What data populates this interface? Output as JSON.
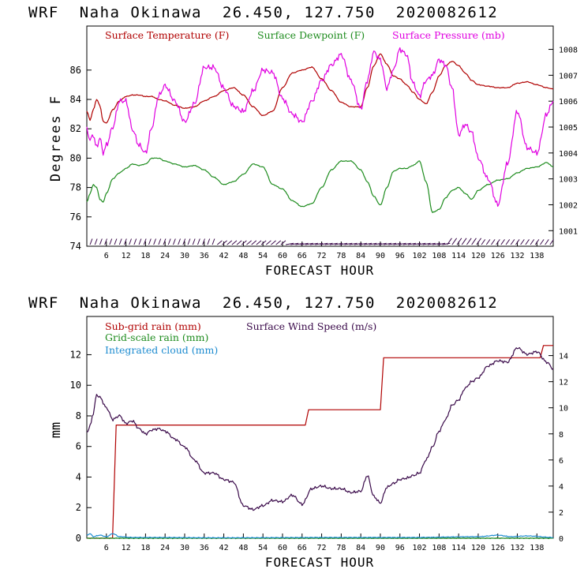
{
  "colors": {
    "temp": "#b00000",
    "dew": "#1e8c1e",
    "pres": "#e000e0",
    "wind": "#3a0a4a",
    "rain_sub": "#b00000",
    "rain_grid": "#1e8c1e",
    "cloud": "#1e8cd0",
    "axis": "#000000"
  },
  "chart_data": [
    {
      "type": "line",
      "header": "WRF  Naha Okinawa  26.450, 127.750  2020082612",
      "xlabel": "FORECAST HOUR",
      "ylabel": "Degrees F",
      "xlim": [
        0,
        143
      ],
      "xticks": [
        6,
        12,
        18,
        24,
        30,
        36,
        42,
        48,
        54,
        60,
        66,
        72,
        78,
        84,
        90,
        96,
        102,
        108,
        114,
        120,
        126,
        132,
        138
      ],
      "ylim": [
        74,
        89
      ],
      "yticks": [
        74,
        76,
        78,
        80,
        82,
        84,
        86
      ],
      "y2lim": [
        1000.4,
        1008.9
      ],
      "y2ticks": [
        1001,
        1002,
        1003,
        1004,
        1005,
        1006,
        1007,
        1008
      ],
      "legend": [
        "Surface Temperature (F)",
        "Surface Dewpoint (F)",
        "Surface Pressure (mb)"
      ],
      "series": [
        {
          "name": "Surface Temperature (F)",
          "axis": "left",
          "x": [
            0,
            1,
            2,
            3,
            4,
            5,
            6,
            8,
            10,
            12,
            14,
            16,
            18,
            20,
            22,
            24,
            27,
            30,
            33,
            36,
            39,
            42,
            45,
            48,
            51,
            54,
            57,
            60,
            63,
            66,
            69,
            72,
            75,
            78,
            81,
            84,
            86,
            88,
            90,
            92,
            94,
            96,
            98,
            100,
            102,
            104,
            106,
            108,
            110,
            112,
            114,
            116,
            118,
            120,
            123,
            126,
            129,
            132,
            135,
            138,
            141,
            143
          ],
          "values": [
            83.2,
            82.6,
            83.3,
            84.0,
            83.6,
            82.5,
            82.4,
            83.3,
            83.9,
            84.2,
            84.3,
            84.3,
            84.2,
            84.2,
            84.0,
            83.9,
            83.6,
            83.4,
            83.5,
            83.9,
            84.2,
            84.6,
            84.8,
            84.3,
            83.5,
            82.9,
            83.2,
            84.8,
            85.8,
            86.0,
            86.2,
            85.4,
            84.6,
            83.8,
            83.5,
            83.5,
            84.8,
            86.3,
            87.1,
            86.4,
            85.6,
            85.4,
            85.0,
            84.5,
            84.0,
            83.7,
            84.5,
            85.6,
            86.3,
            86.6,
            86.3,
            85.8,
            85.3,
            85.0,
            84.9,
            84.8,
            84.8,
            85.1,
            85.2,
            85.0,
            84.8,
            84.7
          ]
        },
        {
          "name": "Surface Dewpoint (F)",
          "axis": "left",
          "x": [
            0,
            1,
            2,
            3,
            4,
            5,
            6,
            8,
            10,
            12,
            14,
            16,
            18,
            20,
            22,
            24,
            27,
            30,
            33,
            36,
            39,
            42,
            45,
            48,
            51,
            54,
            57,
            60,
            63,
            66,
            69,
            72,
            75,
            78,
            81,
            84,
            86,
            88,
            90,
            92,
            94,
            96,
            98,
            100,
            102,
            104,
            106,
            108,
            110,
            112,
            114,
            116,
            118,
            120,
            123,
            126,
            129,
            132,
            135,
            138,
            141,
            143
          ],
          "values": [
            77.0,
            77.6,
            78.2,
            78.0,
            77.2,
            77.0,
            77.6,
            78.6,
            79.0,
            79.3,
            79.6,
            79.5,
            79.6,
            80.0,
            80.0,
            79.8,
            79.6,
            79.4,
            79.5,
            79.2,
            78.7,
            78.2,
            78.4,
            78.9,
            79.6,
            79.4,
            78.2,
            77.9,
            77.1,
            76.7,
            76.9,
            78.0,
            79.2,
            79.8,
            79.8,
            79.2,
            78.4,
            77.4,
            76.8,
            78.0,
            79.1,
            79.3,
            79.3,
            79.5,
            79.8,
            78.4,
            76.3,
            76.5,
            77.3,
            77.8,
            78.0,
            77.6,
            77.2,
            77.8,
            78.2,
            78.5,
            78.6,
            79.0,
            79.3,
            79.4,
            79.7,
            79.4
          ]
        },
        {
          "name": "Surface Pressure (mb)",
          "axis": "right",
          "x": [
            0,
            1,
            2,
            3,
            4,
            5,
            6,
            8,
            10,
            12,
            14,
            16,
            18,
            20,
            22,
            24,
            27,
            30,
            33,
            36,
            39,
            42,
            45,
            48,
            51,
            54,
            57,
            60,
            63,
            66,
            69,
            72,
            75,
            78,
            81,
            84,
            86,
            88,
            90,
            92,
            94,
            96,
            98,
            100,
            102,
            104,
            106,
            108,
            110,
            112,
            114,
            116,
            118,
            120,
            123,
            126,
            129,
            132,
            135,
            138,
            141,
            143
          ],
          "values": [
            1004.9,
            1004.5,
            1004.7,
            1004.2,
            1004.6,
            1004.0,
            1004.3,
            1005.0,
            1006.0,
            1006.0,
            1004.9,
            1004.3,
            1004.0,
            1005.0,
            1006.2,
            1006.6,
            1006.0,
            1005.2,
            1005.9,
            1007.3,
            1007.3,
            1006.5,
            1005.8,
            1005.6,
            1006.4,
            1007.2,
            1007.1,
            1006.1,
            1005.5,
            1005.2,
            1006.0,
            1006.8,
            1007.4,
            1007.8,
            1006.8,
            1005.7,
            1006.8,
            1007.9,
            1007.6,
            1006.5,
            1007.2,
            1008.0,
            1007.8,
            1006.7,
            1006.2,
            1006.8,
            1007.0,
            1007.6,
            1007.4,
            1006.5,
            1004.7,
            1005.1,
            1004.8,
            1003.8,
            1003.0,
            1002.0,
            1003.6,
            1005.6,
            1004.2,
            1004.0,
            1005.5,
            1006.0
          ]
        }
      ],
      "wind_barbs": "surface wind barbs along bottom axis"
    },
    {
      "type": "line",
      "header": "WRF  Naha Okinawa  26.450, 127.750  2020082612",
      "xlabel": "FORECAST HOUR",
      "ylabel": "mm",
      "xlim": [
        0,
        143
      ],
      "xticks": [
        6,
        12,
        18,
        24,
        30,
        36,
        42,
        48,
        54,
        60,
        66,
        72,
        78,
        84,
        90,
        96,
        102,
        108,
        114,
        120,
        126,
        132,
        138
      ],
      "ylim": [
        0,
        14.5
      ],
      "yticks": [
        0,
        2,
        4,
        6,
        8,
        10,
        12
      ],
      "y2lim": [
        0,
        17
      ],
      "y2ticks": [
        0,
        2,
        4,
        6,
        8,
        10,
        12,
        14
      ],
      "legend": [
        "Sub-grid rain (mm)",
        "Grid-scale rain (mm)",
        "Integrated cloud (mm)",
        "Surface Wind Speed (m/s)"
      ],
      "series": [
        {
          "name": "Sub-grid rain (mm)",
          "axis": "left",
          "step": true,
          "x": [
            0,
            7.9,
            9,
            67,
            68,
            90,
            91,
            139,
            140,
            143
          ],
          "values": [
            0,
            0,
            7.4,
            7.4,
            8.4,
            8.4,
            11.8,
            11.8,
            12.6,
            12.6
          ]
        },
        {
          "name": "Grid-scale rain (mm)",
          "axis": "left",
          "x": [
            0,
            143
          ],
          "values": [
            0,
            0
          ]
        },
        {
          "name": "Integrated cloud (mm)",
          "axis": "left",
          "x": [
            0,
            1,
            2,
            4,
            6,
            8,
            10,
            14,
            20,
            40,
            80,
            100,
            120,
            126,
            130,
            135,
            143
          ],
          "values": [
            0.2,
            0.3,
            0.1,
            0.2,
            0.1,
            0.3,
            0.1,
            0.05,
            0.05,
            0.03,
            0.05,
            0.05,
            0.1,
            0.2,
            0.1,
            0.15,
            0.05
          ]
        },
        {
          "name": "Surface Wind Speed (m/s)",
          "axis": "right",
          "x": [
            0,
            1,
            2,
            3,
            4,
            6,
            8,
            10,
            12,
            14,
            16,
            18,
            20,
            22,
            24,
            27,
            30,
            33,
            36,
            39,
            42,
            45,
            48,
            51,
            54,
            57,
            60,
            63,
            66,
            69,
            72,
            75,
            78,
            81,
            84,
            86,
            88,
            90,
            92,
            94,
            96,
            98,
            100,
            102,
            104,
            106,
            108,
            110,
            112,
            114,
            116,
            118,
            120,
            123,
            126,
            129,
            132,
            135,
            138,
            141,
            143
          ],
          "values": [
            8.1,
            8.6,
            9.6,
            11.0,
            10.8,
            10.0,
            9.1,
            9.4,
            8.8,
            9.0,
            8.4,
            8.0,
            8.3,
            8.4,
            8.2,
            7.6,
            7.0,
            6.0,
            5.0,
            5.0,
            4.5,
            4.3,
            2.5,
            2.2,
            2.5,
            2.9,
            2.8,
            3.3,
            2.6,
            3.8,
            4.0,
            3.8,
            3.8,
            3.5,
            3.6,
            4.8,
            3.2,
            2.7,
            3.9,
            4.2,
            4.5,
            4.6,
            4.8,
            5.0,
            6.0,
            7.0,
            8.2,
            9.1,
            10.2,
            10.6,
            11.5,
            12.0,
            12.3,
            13.2,
            13.6,
            13.5,
            14.6,
            14.1,
            14.3,
            13.5,
            13.0
          ]
        }
      ]
    }
  ]
}
